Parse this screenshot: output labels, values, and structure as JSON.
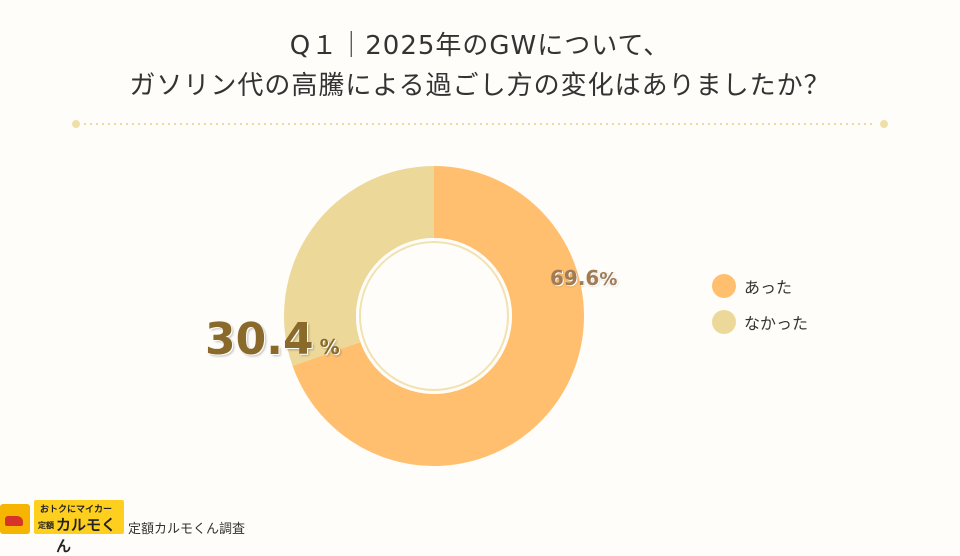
{
  "title_line1": "Q１｜2025年のGWについて、",
  "title_line2": "ガソリン代の高騰による過ごし方の変化はありましたか？",
  "chart_data": {
    "type": "pie",
    "style": "donut",
    "categories": [
      "あった",
      "なかった"
    ],
    "values": [
      69.6,
      30.4
    ],
    "value_labels": [
      "69.6",
      "30.4"
    ],
    "unit": "%",
    "colors": [
      "#ffbf6e",
      "#ecd99a"
    ],
    "legend": [
      "あった",
      "なかった"
    ],
    "legend_position": "right",
    "start_angle": "top, clockwise"
  },
  "footer": {
    "logo_tagline": "おトクにマイカー",
    "logo_small": "定額",
    "logo_name": "カルモくん",
    "source": "定額カルモくん調査"
  }
}
